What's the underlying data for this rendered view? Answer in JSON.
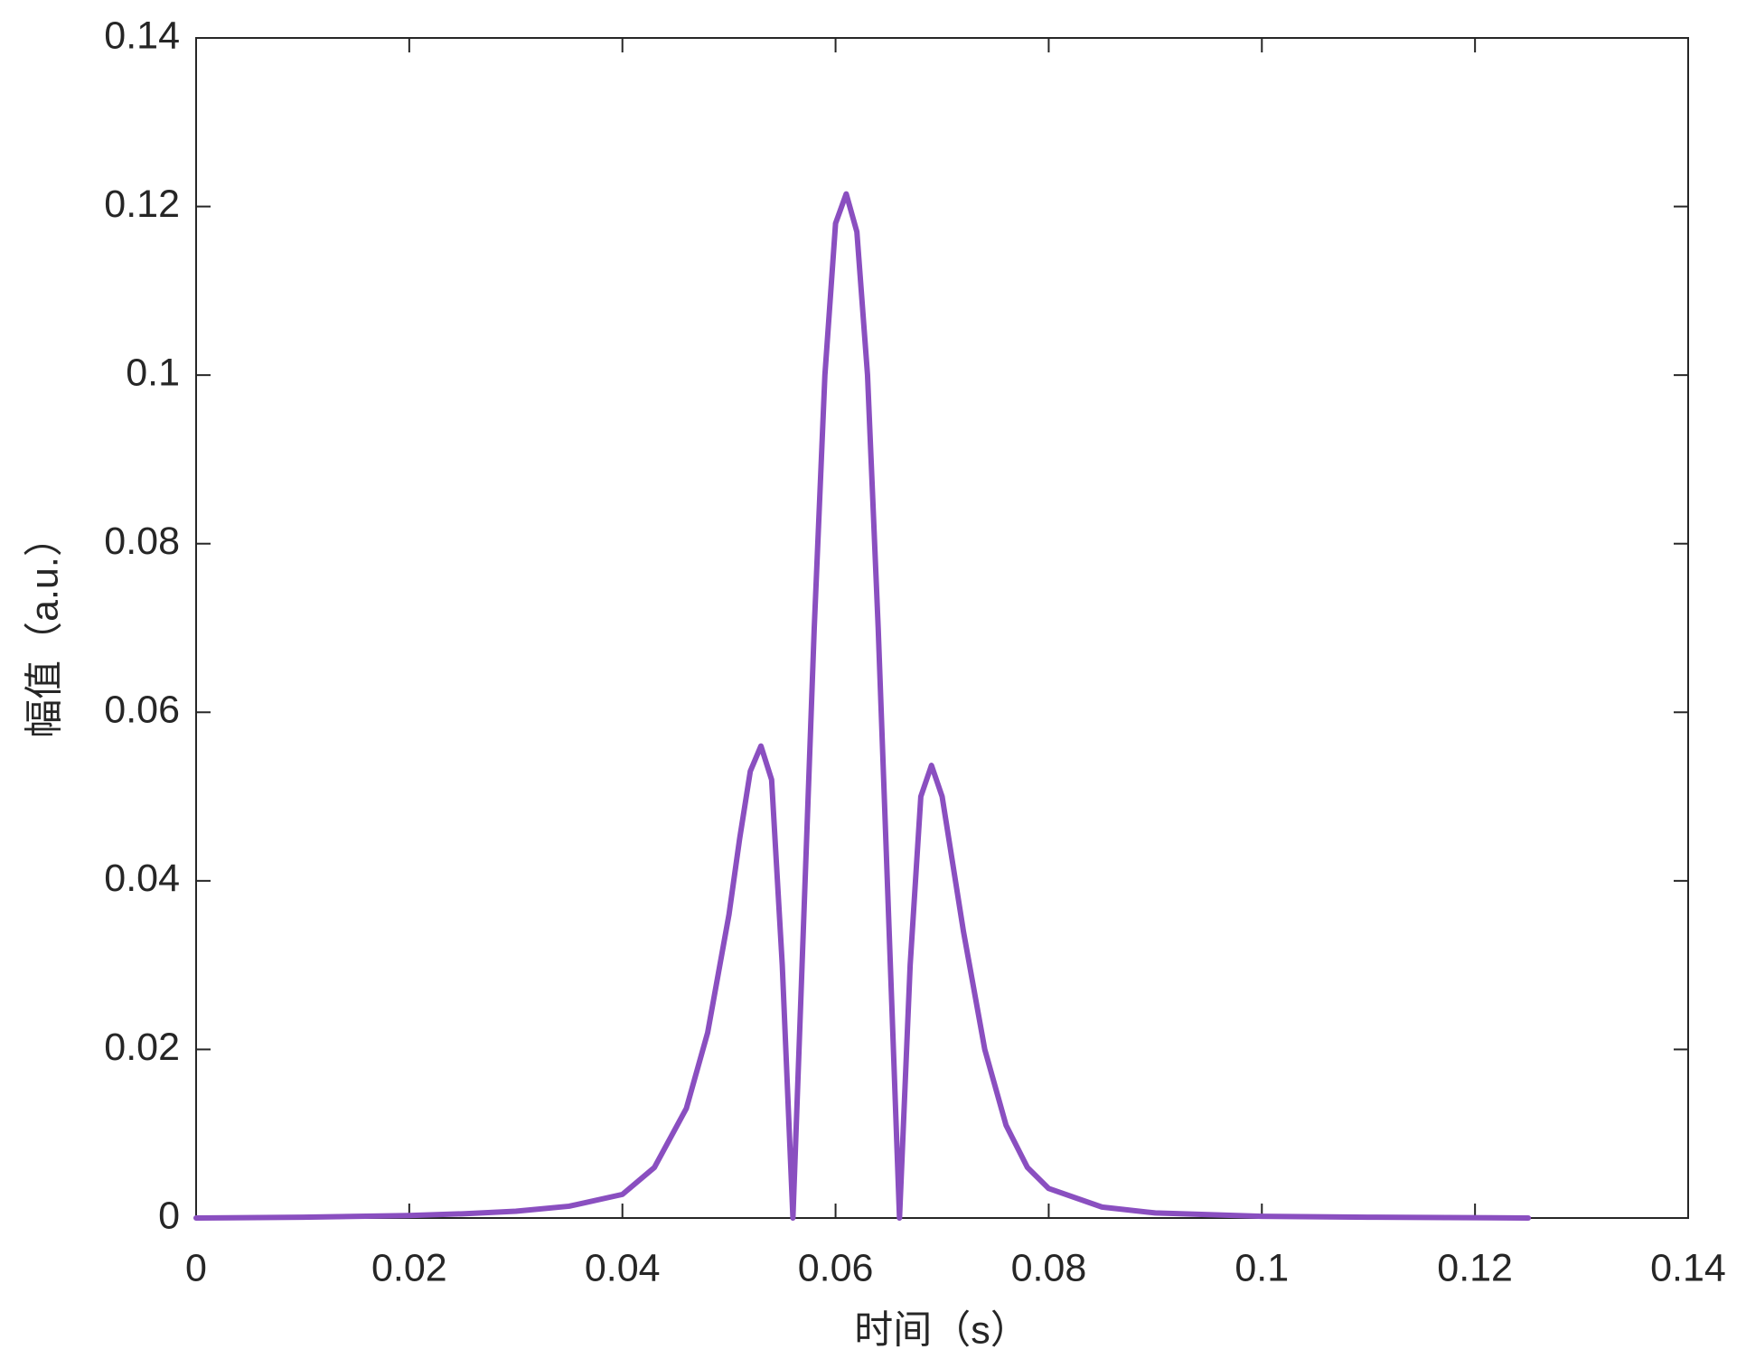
{
  "chart_data": {
    "type": "line",
    "xlabel": "时间（s）",
    "ylabel": "幅值（a.u.）",
    "x": [
      0,
      0.01,
      0.02,
      0.025,
      0.03,
      0.035,
      0.04,
      0.043,
      0.046,
      0.048,
      0.05,
      0.051,
      0.052,
      0.053,
      0.054,
      0.055,
      0.056,
      0.057,
      0.058,
      0.059,
      0.06,
      0.061,
      0.062,
      0.063,
      0.064,
      0.065,
      0.066,
      0.067,
      0.068,
      0.069,
      0.07,
      0.071,
      0.072,
      0.074,
      0.076,
      0.078,
      0.08,
      0.085,
      0.09,
      0.1,
      0.11,
      0.125
    ],
    "series": [
      {
        "color": "#8a4fc0",
        "values": [
          0,
          0.0001,
          0.0003,
          0.0005,
          0.0008,
          0.0014,
          0.0028,
          0.006,
          0.013,
          0.022,
          0.036,
          0.045,
          0.053,
          0.056,
          0.052,
          0.03,
          0,
          0.035,
          0.07,
          0.1,
          0.118,
          0.1215,
          0.117,
          0.1,
          0.07,
          0.035,
          0,
          0.03,
          0.05,
          0.0537,
          0.05,
          0.042,
          0.034,
          0.02,
          0.011,
          0.006,
          0.0035,
          0.0013,
          0.0006,
          0.0002,
          0.0001,
          0
        ]
      }
    ],
    "xlim": [
      0,
      0.14
    ],
    "xticks": [
      0,
      0.02,
      0.04,
      0.06,
      0.08,
      0.1,
      0.12,
      0.14
    ],
    "ylim": [
      0,
      0.14
    ],
    "yticks": [
      0,
      0.02,
      0.04,
      0.06,
      0.08,
      0.1,
      0.12,
      0.14
    ],
    "grid": false
  }
}
